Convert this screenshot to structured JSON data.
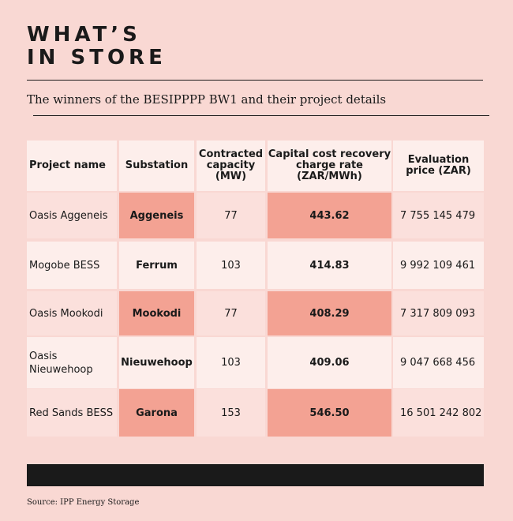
{
  "title": {
    "line1": "WHAT’S",
    "line2": "IN STORE"
  },
  "subtitle": "The winners of the BESIPPPP BW1 and their project details",
  "table": {
    "headers": [
      "Project name",
      "Substation",
      "Contracted capacity (MW)",
      "Capital cost recovery charge rate (ZAR/MWh)",
      "Evaluation price (ZAR)"
    ],
    "rows": [
      {
        "project": "Oasis Aggeneis",
        "substation": "Aggeneis",
        "capacity": "77",
        "rate": "443.62",
        "price": "7 755 145 479"
      },
      {
        "project": "Mogobe BESS",
        "substation": "Ferrum",
        "capacity": "103",
        "rate": "414.83",
        "price": "9 992 109 461"
      },
      {
        "project": "Oasis Mookodi",
        "substation": "Mookodi",
        "capacity": "77",
        "rate": "408.29",
        "price": "7 317 809 093"
      },
      {
        "project": "Oasis Nieuwehoop",
        "substation": "Nieuwehoop",
        "capacity": "103",
        "rate": "409.06",
        "price": "9 047 668 456"
      },
      {
        "project": "Red Sands BESS",
        "substation": "Garona",
        "capacity": "153",
        "rate": "546.50",
        "price": "16 501 242 802"
      }
    ]
  },
  "source": "Source: IPP Energy Storage"
}
